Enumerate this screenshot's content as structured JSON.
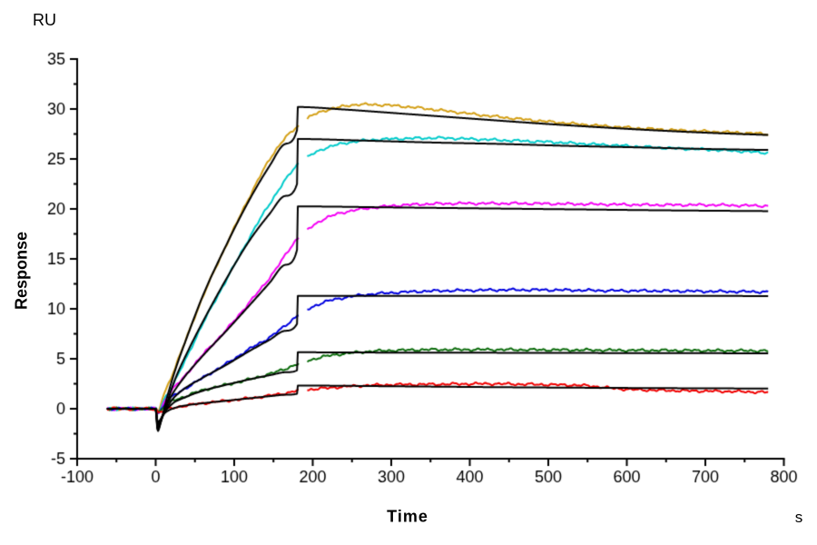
{
  "chart_data": {
    "type": "line",
    "title": "",
    "ylabel": "Response",
    "xlabel": "Time",
    "y_unit": "RU",
    "x_unit": "s",
    "xlim": [
      -100,
      800
    ],
    "ylim": [
      -5,
      35
    ],
    "x_ticks": [
      -100,
      0,
      100,
      200,
      300,
      400,
      500,
      600,
      700,
      800
    ],
    "y_ticks": [
      -5,
      0,
      5,
      10,
      15,
      20,
      25,
      30,
      35
    ],
    "x_minor_step": 50,
    "y_minor_step": 2.5,
    "grid": false,
    "legend_position": "none",
    "axis_color": "#000000",
    "injection_start_s": 0,
    "injection_end_s": 180,
    "series": [
      {
        "name": "measured-gold",
        "role": "measured",
        "color": "#D4A017",
        "noise": true,
        "gap": [
          182,
          193
        ],
        "points": [
          [
            -62,
            0
          ],
          [
            -30,
            0
          ],
          [
            -5,
            0
          ],
          [
            0,
            0
          ],
          [
            3,
            -0.4
          ],
          [
            8,
            0.9
          ],
          [
            20,
            3.2
          ],
          [
            33,
            5.8
          ],
          [
            60,
            11.2
          ],
          [
            90,
            16.4
          ],
          [
            120,
            21.3
          ],
          [
            138,
            24.0
          ],
          [
            152,
            25.8
          ],
          [
            165,
            27.1
          ],
          [
            173,
            27.7
          ],
          [
            180,
            28.2
          ],
          [
            194,
            29.1
          ],
          [
            210,
            29.7
          ],
          [
            235,
            30.2
          ],
          [
            260,
            30.45
          ],
          [
            290,
            30.4
          ],
          [
            330,
            30.15
          ],
          [
            370,
            29.8
          ],
          [
            420,
            29.35
          ],
          [
            470,
            28.95
          ],
          [
            520,
            28.6
          ],
          [
            570,
            28.3
          ],
          [
            620,
            28.05
          ],
          [
            670,
            27.85
          ],
          [
            720,
            27.7
          ],
          [
            780,
            27.5
          ]
        ]
      },
      {
        "name": "measured-cyan",
        "role": "measured",
        "color": "#00CBCB",
        "noise": true,
        "gap": [
          182,
          193
        ],
        "points": [
          [
            -62,
            0
          ],
          [
            -30,
            0
          ],
          [
            -5,
            0
          ],
          [
            0,
            0
          ],
          [
            3,
            -0.45
          ],
          [
            10,
            0.8
          ],
          [
            20,
            2.1
          ],
          [
            33,
            4.1
          ],
          [
            60,
            8.5
          ],
          [
            90,
            12.9
          ],
          [
            120,
            17.2
          ],
          [
            140,
            19.9
          ],
          [
            155,
            21.7
          ],
          [
            168,
            23.2
          ],
          [
            180,
            24.4
          ],
          [
            194,
            25.2
          ],
          [
            210,
            25.9
          ],
          [
            230,
            26.4
          ],
          [
            255,
            26.75
          ],
          [
            285,
            26.95
          ],
          [
            320,
            27.05
          ],
          [
            360,
            27.1
          ],
          [
            400,
            27.0
          ],
          [
            450,
            26.85
          ],
          [
            500,
            26.7
          ],
          [
            550,
            26.5
          ],
          [
            600,
            26.3
          ],
          [
            650,
            26.1
          ],
          [
            700,
            25.95
          ],
          [
            740,
            25.8
          ],
          [
            780,
            25.6
          ]
        ]
      },
      {
        "name": "measured-magenta",
        "role": "measured",
        "color": "#F500F5",
        "noise": true,
        "gap": [
          182,
          193
        ],
        "points": [
          [
            -62,
            0
          ],
          [
            -30,
            0
          ],
          [
            -5,
            0
          ],
          [
            0,
            0
          ],
          [
            3,
            -0.4
          ],
          [
            15,
            1.3
          ],
          [
            33,
            2.9
          ],
          [
            60,
            5.4
          ],
          [
            90,
            7.9
          ],
          [
            120,
            10.7
          ],
          [
            140,
            12.6
          ],
          [
            155,
            14.2
          ],
          [
            168,
            15.7
          ],
          [
            180,
            17.0
          ],
          [
            195,
            18.0
          ],
          [
            212,
            18.9
          ],
          [
            232,
            19.5
          ],
          [
            255,
            19.9
          ],
          [
            280,
            20.15
          ],
          [
            310,
            20.35
          ],
          [
            350,
            20.5
          ],
          [
            400,
            20.55
          ],
          [
            460,
            20.55
          ],
          [
            520,
            20.5
          ],
          [
            580,
            20.45
          ],
          [
            640,
            20.4
          ],
          [
            700,
            20.4
          ],
          [
            740,
            20.35
          ],
          [
            780,
            20.3
          ]
        ]
      },
      {
        "name": "measured-blue",
        "role": "measured",
        "color": "#0000E0",
        "noise": true,
        "gap": [
          182,
          193
        ],
        "points": [
          [
            -62,
            0
          ],
          [
            -30,
            0
          ],
          [
            -5,
            0
          ],
          [
            0,
            0
          ],
          [
            3,
            -0.3
          ],
          [
            15,
            0.8
          ],
          [
            33,
            1.8
          ],
          [
            60,
            3.1
          ],
          [
            90,
            4.5
          ],
          [
            120,
            6.0
          ],
          [
            140,
            6.9
          ],
          [
            155,
            7.7
          ],
          [
            168,
            8.5
          ],
          [
            180,
            9.3
          ],
          [
            195,
            10.0
          ],
          [
            212,
            10.6
          ],
          [
            232,
            11.0
          ],
          [
            255,
            11.3
          ],
          [
            280,
            11.5
          ],
          [
            310,
            11.65
          ],
          [
            350,
            11.78
          ],
          [
            400,
            11.85
          ],
          [
            460,
            11.9
          ],
          [
            520,
            11.88
          ],
          [
            580,
            11.82
          ],
          [
            640,
            11.8
          ],
          [
            700,
            11.75
          ],
          [
            780,
            11.7
          ]
        ]
      },
      {
        "name": "measured-green",
        "role": "measured",
        "color": "#0B6B0B",
        "noise": true,
        "gap": [
          182,
          193
        ],
        "points": [
          [
            -62,
            0
          ],
          [
            -30,
            0
          ],
          [
            -5,
            0
          ],
          [
            0,
            0
          ],
          [
            3,
            -0.3
          ],
          [
            15,
            0.55
          ],
          [
            33,
            1.1
          ],
          [
            60,
            1.85
          ],
          [
            90,
            2.4
          ],
          [
            120,
            2.95
          ],
          [
            148,
            3.55
          ],
          [
            165,
            4.0
          ],
          [
            180,
            4.45
          ],
          [
            198,
            4.9
          ],
          [
            220,
            5.3
          ],
          [
            245,
            5.55
          ],
          [
            275,
            5.75
          ],
          [
            310,
            5.85
          ],
          [
            360,
            5.92
          ],
          [
            420,
            5.92
          ],
          [
            480,
            5.9
          ],
          [
            540,
            5.88
          ],
          [
            600,
            5.85
          ],
          [
            660,
            5.84
          ],
          [
            720,
            5.82
          ],
          [
            780,
            5.8
          ]
        ]
      },
      {
        "name": "measured-red",
        "role": "measured",
        "color": "#F00000",
        "noise": true,
        "gap": [
          182,
          193
        ],
        "points": [
          [
            -62,
            0
          ],
          [
            -30,
            0
          ],
          [
            -5,
            0
          ],
          [
            0,
            0
          ],
          [
            3,
            -0.35
          ],
          [
            15,
            -0.05
          ],
          [
            33,
            0.25
          ],
          [
            60,
            0.55
          ],
          [
            90,
            0.8
          ],
          [
            120,
            1.05
          ],
          [
            148,
            1.35
          ],
          [
            165,
            1.55
          ],
          [
            180,
            1.8
          ],
          [
            200,
            1.95
          ],
          [
            230,
            2.15
          ],
          [
            260,
            2.3
          ],
          [
            300,
            2.4
          ],
          [
            360,
            2.45
          ],
          [
            420,
            2.5
          ],
          [
            470,
            2.45
          ],
          [
            520,
            2.38
          ],
          [
            550,
            2.3
          ],
          [
            575,
            2.1
          ],
          [
            600,
            1.95
          ],
          [
            640,
            1.85
          ],
          [
            690,
            1.78
          ],
          [
            740,
            1.72
          ],
          [
            780,
            1.65
          ]
        ]
      },
      {
        "name": "fit-gold",
        "role": "fit",
        "color": "#000000",
        "noise": false,
        "points": [
          [
            -62,
            0
          ],
          [
            -5,
            0
          ],
          [
            0,
            0
          ],
          [
            2.5,
            -2.25
          ],
          [
            7,
            -1.2
          ],
          [
            14,
            1.0
          ],
          [
            25,
            3.9
          ],
          [
            40,
            7.2
          ],
          [
            60,
            11.3
          ],
          [
            90,
            16.4
          ],
          [
            120,
            21.0
          ],
          [
            145,
            24.3
          ],
          [
            165,
            26.5
          ],
          [
            180,
            27.9
          ],
          [
            181,
            30.2
          ],
          [
            240,
            29.95
          ],
          [
            320,
            29.5
          ],
          [
            400,
            29.05
          ],
          [
            480,
            28.6
          ],
          [
            560,
            28.2
          ],
          [
            640,
            27.85
          ],
          [
            710,
            27.6
          ],
          [
            780,
            27.4
          ]
        ]
      },
      {
        "name": "fit-cyan",
        "role": "fit",
        "color": "#000000",
        "noise": false,
        "points": [
          [
            -62,
            0
          ],
          [
            -5,
            0
          ],
          [
            0,
            0
          ],
          [
            2.5,
            -2.1
          ],
          [
            7,
            -1.2
          ],
          [
            14,
            0.5
          ],
          [
            25,
            3.0
          ],
          [
            40,
            5.6
          ],
          [
            60,
            8.7
          ],
          [
            90,
            13.0
          ],
          [
            120,
            16.9
          ],
          [
            145,
            19.5
          ],
          [
            165,
            21.3
          ],
          [
            180,
            22.5
          ],
          [
            181,
            27.0
          ],
          [
            260,
            26.85
          ],
          [
            350,
            26.65
          ],
          [
            440,
            26.5
          ],
          [
            530,
            26.3
          ],
          [
            620,
            26.15
          ],
          [
            700,
            26.0
          ],
          [
            780,
            25.9
          ]
        ]
      },
      {
        "name": "fit-magenta",
        "role": "fit",
        "color": "#000000",
        "noise": false,
        "points": [
          [
            -62,
            0
          ],
          [
            -5,
            0
          ],
          [
            0,
            0
          ],
          [
            2.5,
            -1.9
          ],
          [
            8,
            -0.9
          ],
          [
            18,
            1.0
          ],
          [
            33,
            2.8
          ],
          [
            60,
            5.3
          ],
          [
            90,
            7.8
          ],
          [
            120,
            10.4
          ],
          [
            145,
            12.6
          ],
          [
            165,
            14.4
          ],
          [
            180,
            15.9
          ],
          [
            181,
            20.25
          ],
          [
            300,
            20.15
          ],
          [
            420,
            20.05
          ],
          [
            540,
            19.95
          ],
          [
            660,
            19.85
          ],
          [
            780,
            19.78
          ]
        ]
      },
      {
        "name": "fit-blue",
        "role": "fit",
        "color": "#000000",
        "noise": false,
        "points": [
          [
            -62,
            0
          ],
          [
            -5,
            0
          ],
          [
            0,
            0
          ],
          [
            2.5,
            -1.7
          ],
          [
            9,
            -0.7
          ],
          [
            20,
            0.8
          ],
          [
            33,
            1.8
          ],
          [
            60,
            3.1
          ],
          [
            90,
            4.4
          ],
          [
            120,
            5.8
          ],
          [
            145,
            6.9
          ],
          [
            165,
            7.8
          ],
          [
            180,
            8.5
          ],
          [
            181,
            11.3
          ],
          [
            300,
            11.3
          ],
          [
            450,
            11.3
          ],
          [
            600,
            11.3
          ],
          [
            780,
            11.28
          ]
        ]
      },
      {
        "name": "fit-green",
        "role": "fit",
        "color": "#000000",
        "noise": false,
        "points": [
          [
            -62,
            0
          ],
          [
            -5,
            0
          ],
          [
            0,
            0
          ],
          [
            2.5,
            -1.5
          ],
          [
            10,
            -0.5
          ],
          [
            22,
            0.55
          ],
          [
            33,
            1.0
          ],
          [
            60,
            1.8
          ],
          [
            90,
            2.4
          ],
          [
            120,
            2.95
          ],
          [
            148,
            3.4
          ],
          [
            165,
            3.65
          ],
          [
            180,
            3.85
          ],
          [
            181,
            5.65
          ],
          [
            300,
            5.62
          ],
          [
            450,
            5.6
          ],
          [
            620,
            5.57
          ],
          [
            780,
            5.55
          ]
        ]
      },
      {
        "name": "fit-red",
        "role": "fit",
        "color": "#000000",
        "noise": false,
        "points": [
          [
            -62,
            0
          ],
          [
            -5,
            0
          ],
          [
            0,
            0
          ],
          [
            2.5,
            -1.3
          ],
          [
            12,
            -0.4
          ],
          [
            25,
            0.1
          ],
          [
            40,
            0.35
          ],
          [
            60,
            0.55
          ],
          [
            90,
            0.8
          ],
          [
            120,
            1.05
          ],
          [
            148,
            1.28
          ],
          [
            165,
            1.4
          ],
          [
            180,
            1.5
          ],
          [
            181,
            2.32
          ],
          [
            300,
            2.25
          ],
          [
            450,
            2.15
          ],
          [
            600,
            2.08
          ],
          [
            780,
            2.02
          ]
        ]
      }
    ]
  }
}
